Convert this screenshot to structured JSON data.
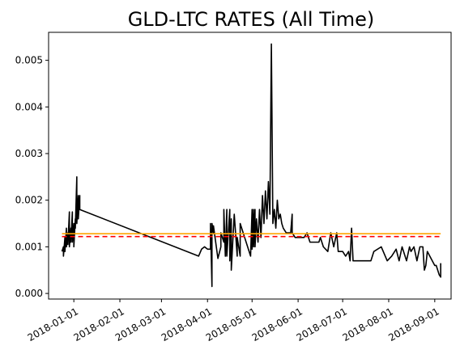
{
  "chart_data": {
    "type": "line",
    "title": "GLD-LTC RATES (All Time)",
    "xlabel": "",
    "ylabel": "",
    "x_range": [
      "2017-12-15",
      "2018-09-12"
    ],
    "ylim": [
      -0.00012,
      0.0056
    ],
    "grid": false,
    "x_ticks": [
      "2018-01-01",
      "2018-02-01",
      "2018-03-01",
      "2018-04-01",
      "2018-05-01",
      "2018-06-01",
      "2018-07-01",
      "2018-08-01",
      "2018-09-01"
    ],
    "y_ticks": [
      "0.000",
      "0.001",
      "0.002",
      "0.003",
      "0.004",
      "0.005"
    ],
    "y_tick_values": [
      0.0,
      0.001,
      0.002,
      0.003,
      0.004,
      0.005
    ],
    "series": [
      {
        "color": "#000000",
        "style": "solid",
        "x": [
          "2017-12-24",
          "2017-12-25",
          "2017-12-25",
          "2017-12-26",
          "2017-12-26",
          "2017-12-27",
          "2017-12-27",
          "2017-12-28",
          "2017-12-28",
          "2017-12-29",
          "2017-12-29",
          "2017-12-30",
          "2017-12-30",
          "2017-12-31",
          "2017-12-31",
          "2018-01-01",
          "2018-01-01",
          "2018-01-02",
          "2018-01-02",
          "2018-01-03",
          "2018-01-03",
          "2018-01-04",
          "2018-01-04",
          "2018-01-05",
          "2018-01-05",
          "2018-03-26",
          "2018-03-28",
          "2018-03-30",
          "2018-04-01",
          "2018-04-03",
          "2018-04-03",
          "2018-04-04",
          "2018-04-04",
          "2018-04-05",
          "2018-04-05",
          "2018-04-08",
          "2018-04-10",
          "2018-04-10",
          "2018-04-12",
          "2018-04-12",
          "2018-04-13",
          "2018-04-14",
          "2018-04-14",
          "2018-04-16",
          "2018-04-16",
          "2018-04-17",
          "2018-04-17",
          "2018-04-19",
          "2018-04-21",
          "2018-04-21",
          "2018-04-23",
          "2018-04-23",
          "2018-04-30",
          "2018-05-01",
          "2018-05-01",
          "2018-05-02",
          "2018-05-02",
          "2018-05-03",
          "2018-05-03",
          "2018-05-04",
          "2018-05-05",
          "2018-05-06",
          "2018-05-07",
          "2018-05-08",
          "2018-05-09",
          "2018-05-10",
          "2018-05-11",
          "2018-05-12",
          "2018-05-13",
          "2018-05-14",
          "2018-05-15",
          "2018-05-16",
          "2018-05-17",
          "2018-05-18",
          "2018-05-19",
          "2018-05-20",
          "2018-05-21",
          "2018-05-22",
          "2018-05-24",
          "2018-05-27",
          "2018-05-28",
          "2018-05-28",
          "2018-05-30",
          "2018-06-03",
          "2018-06-05",
          "2018-06-07",
          "2018-06-09",
          "2018-06-10",
          "2018-06-15",
          "2018-06-16",
          "2018-06-18",
          "2018-06-21",
          "2018-06-23",
          "2018-06-25",
          "2018-06-27",
          "2018-06-28",
          "2018-07-01",
          "2018-07-03",
          "2018-07-05",
          "2018-07-06",
          "2018-07-07",
          "2018-07-08",
          "2018-07-10",
          "2018-07-15",
          "2018-07-20",
          "2018-07-22",
          "2018-07-27",
          "2018-07-31",
          "2018-08-03",
          "2018-08-06",
          "2018-08-08",
          "2018-08-10",
          "2018-08-13",
          "2018-08-15",
          "2018-08-16",
          "2018-08-18",
          "2018-08-20",
          "2018-08-22",
          "2018-08-24",
          "2018-08-25",
          "2018-08-26",
          "2018-08-27",
          "2018-09-01",
          "2018-09-02",
          "2018-09-04",
          "2018-09-05",
          "2018-09-05"
        ],
        "y": [
          0.0009,
          0.001,
          0.0008,
          0.0012,
          0.0009,
          0.0014,
          0.001,
          0.0013,
          0.00105,
          0.00175,
          0.001,
          0.0014,
          0.0011,
          0.00175,
          0.0011,
          0.0015,
          0.001,
          0.0016,
          0.0014,
          0.0025,
          0.0015,
          0.0021,
          0.0016,
          0.0021,
          0.0018,
          0.0008,
          0.00095,
          0.001,
          0.00095,
          0.00095,
          0.0015,
          0.00015,
          0.0015,
          0.0013,
          0.00145,
          0.00075,
          0.001,
          0.0013,
          0.0011,
          0.0018,
          0.0008,
          0.0018,
          0.0008,
          0.0018,
          0.0007,
          0.0016,
          0.0005,
          0.0017,
          0.0008,
          0.0012,
          0.0008,
          0.0015,
          0.0008,
          0.0018,
          0.00095,
          0.0018,
          0.001,
          0.0018,
          0.001,
          0.0016,
          0.0011,
          0.0018,
          0.0012,
          0.0021,
          0.0015,
          0.0022,
          0.0016,
          0.0024,
          0.0017,
          0.00535,
          0.0015,
          0.0018,
          0.0014,
          0.002,
          0.0016,
          0.0017,
          0.0015,
          0.0014,
          0.0013,
          0.0013,
          0.0017,
          0.0013,
          0.0012,
          0.0012,
          0.0012,
          0.0013,
          0.0011,
          0.0011,
          0.0011,
          0.0012,
          0.001,
          0.0009,
          0.0013,
          0.001,
          0.0013,
          0.0009,
          0.0009,
          0.0008,
          0.0009,
          0.0007,
          0.0014,
          0.0007,
          0.0007,
          0.0007,
          0.0007,
          0.0009,
          0.001,
          0.0007,
          0.0008,
          0.00095,
          0.0007,
          0.001,
          0.0007,
          0.001,
          0.0009,
          0.001,
          0.0007,
          0.001,
          0.001,
          0.0005,
          0.0006,
          0.0009,
          0.0006,
          0.0006,
          0.0004,
          0.00035,
          0.00065
        ]
      },
      {
        "color": "#ff0000",
        "style": "dashed",
        "x": [
          "2017-12-24",
          "2018-09-05"
        ],
        "y": [
          0.00122,
          0.00122
        ]
      },
      {
        "color": "#ffa500",
        "style": "solid",
        "x": [
          "2017-12-24",
          "2018-09-05"
        ],
        "y": [
          0.00128,
          0.00128
        ]
      }
    ]
  }
}
